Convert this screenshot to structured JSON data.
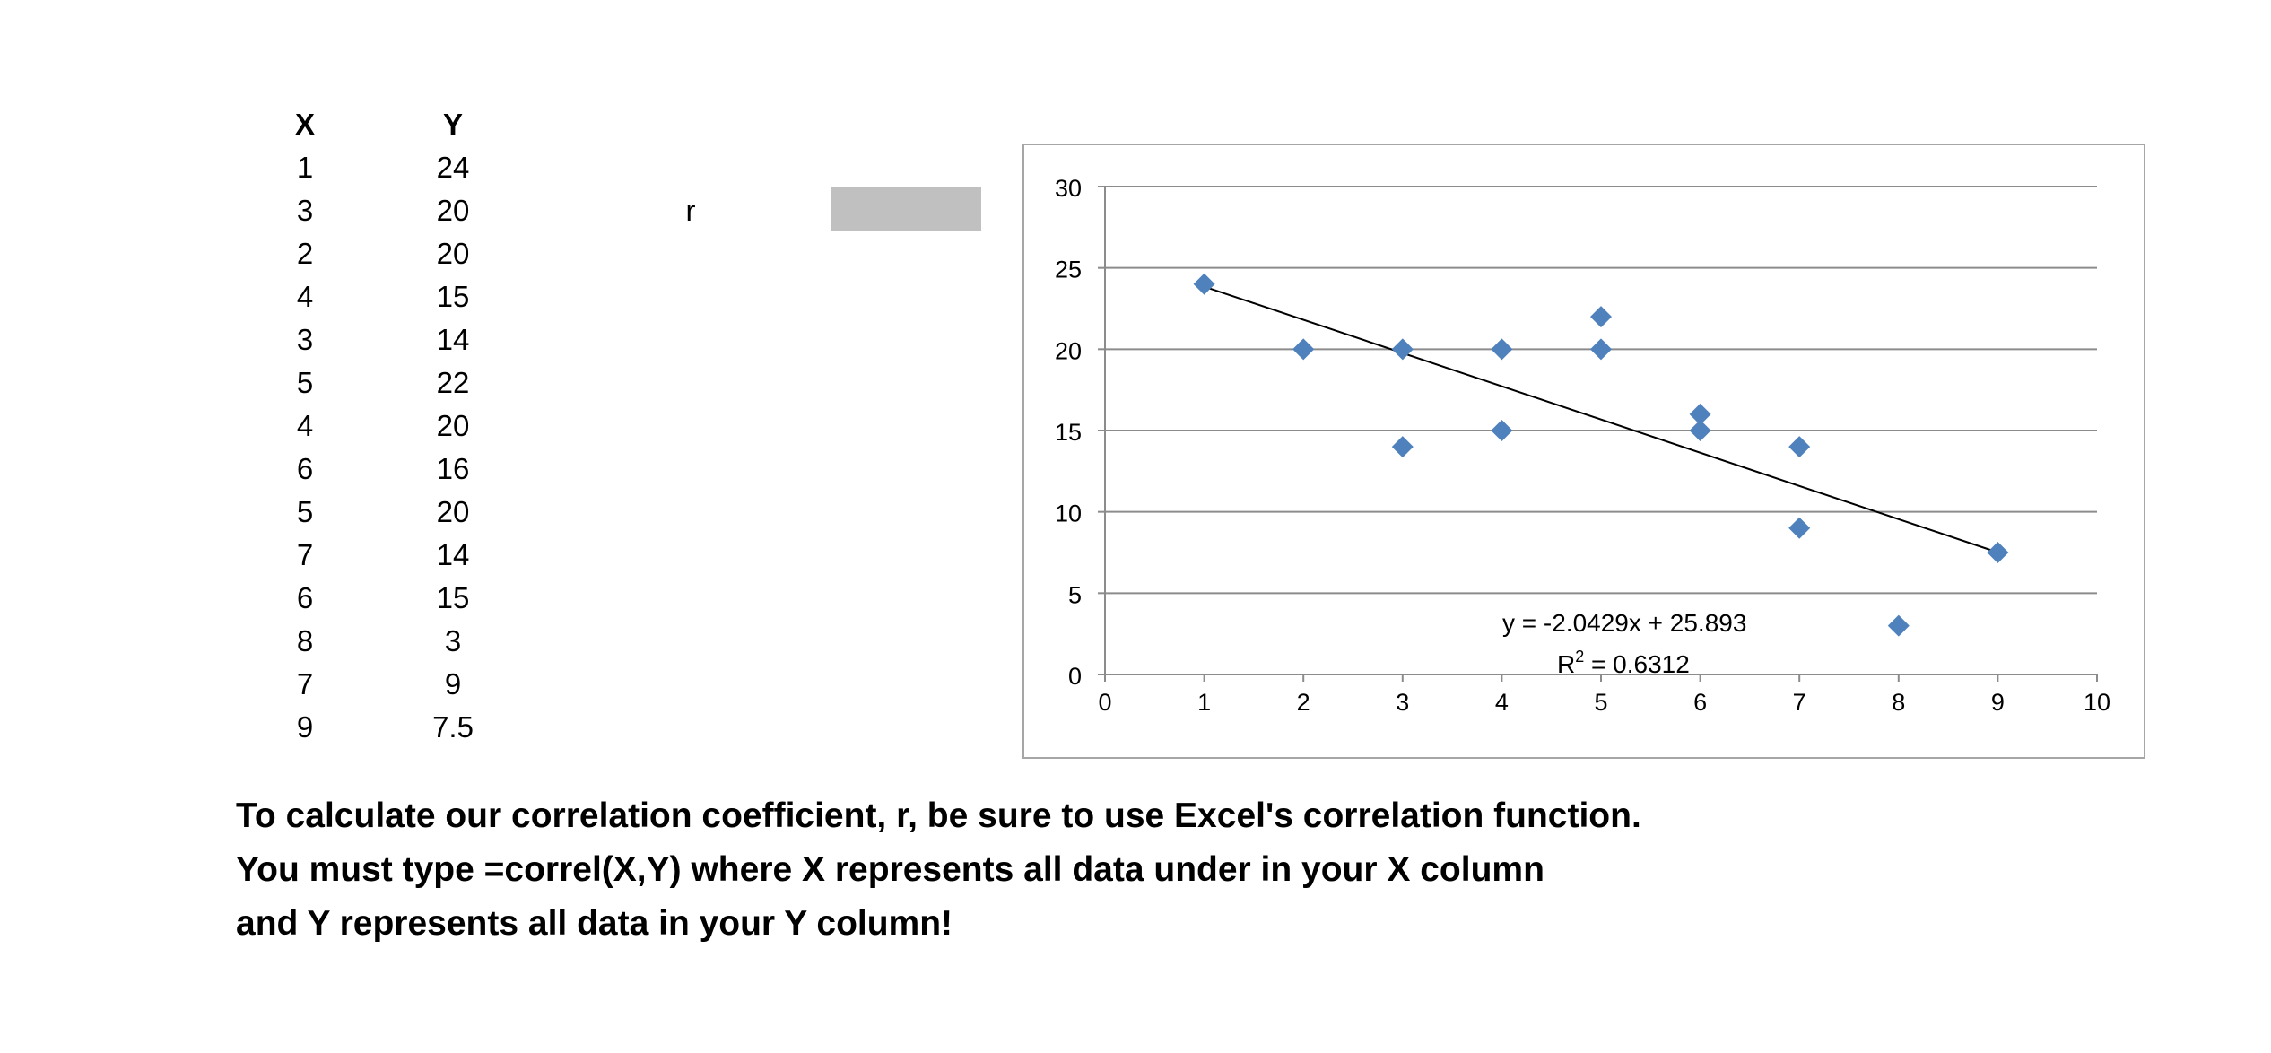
{
  "table": {
    "x_header": "X",
    "y_header": "Y",
    "rows": [
      {
        "x": "1",
        "y": "24"
      },
      {
        "x": "3",
        "y": "20"
      },
      {
        "x": "2",
        "y": "20"
      },
      {
        "x": "4",
        "y": "15"
      },
      {
        "x": "3",
        "y": "14"
      },
      {
        "x": "5",
        "y": "22"
      },
      {
        "x": "4",
        "y": "20"
      },
      {
        "x": "6",
        "y": "16"
      },
      {
        "x": "5",
        "y": "20"
      },
      {
        "x": "7",
        "y": "14"
      },
      {
        "x": "6",
        "y": "15"
      },
      {
        "x": "8",
        "y": "3"
      },
      {
        "x": "7",
        "y": "9"
      },
      {
        "x": "9",
        "y": "7.5"
      }
    ]
  },
  "r_label": "r",
  "r_cell_color": "#c0c0c0",
  "chart_data": {
    "type": "scatter",
    "title": "",
    "xlabel": "",
    "ylabel": "",
    "xlim": [
      0,
      10
    ],
    "ylim": [
      0,
      30
    ],
    "x_ticks": [
      "0",
      "1",
      "2",
      "3",
      "4",
      "5",
      "6",
      "7",
      "8",
      "9",
      "10"
    ],
    "y_ticks": [
      "0",
      "5",
      "10",
      "15",
      "20",
      "25",
      "30"
    ],
    "grid": "horizontal",
    "marker": "diamond",
    "marker_color": "#4f81bd",
    "series": [
      {
        "x": [
          1,
          3,
          2,
          4,
          3,
          5,
          4,
          6,
          5,
          7,
          6,
          8,
          7,
          9
        ],
        "y": [
          24,
          20,
          20,
          15,
          14,
          22,
          20,
          16,
          20,
          14,
          15,
          3,
          9,
          7.5
        ]
      }
    ],
    "trendline": {
      "slope": -2.0429,
      "intercept": 25.893,
      "x_range": [
        1,
        9
      ],
      "equation": "y =  -2.0429x + 25.893",
      "r2_prefix": "R",
      "r2_sup": "2",
      "r2_value": " = 0.6312"
    }
  },
  "note_lines": [
    "To calculate our correlation coefficient, r, be sure to use Excel's correlation function.",
    "You must type =correl(X,Y) where X represents all data under in your X column",
    "and Y represents all data in your Y column!"
  ]
}
